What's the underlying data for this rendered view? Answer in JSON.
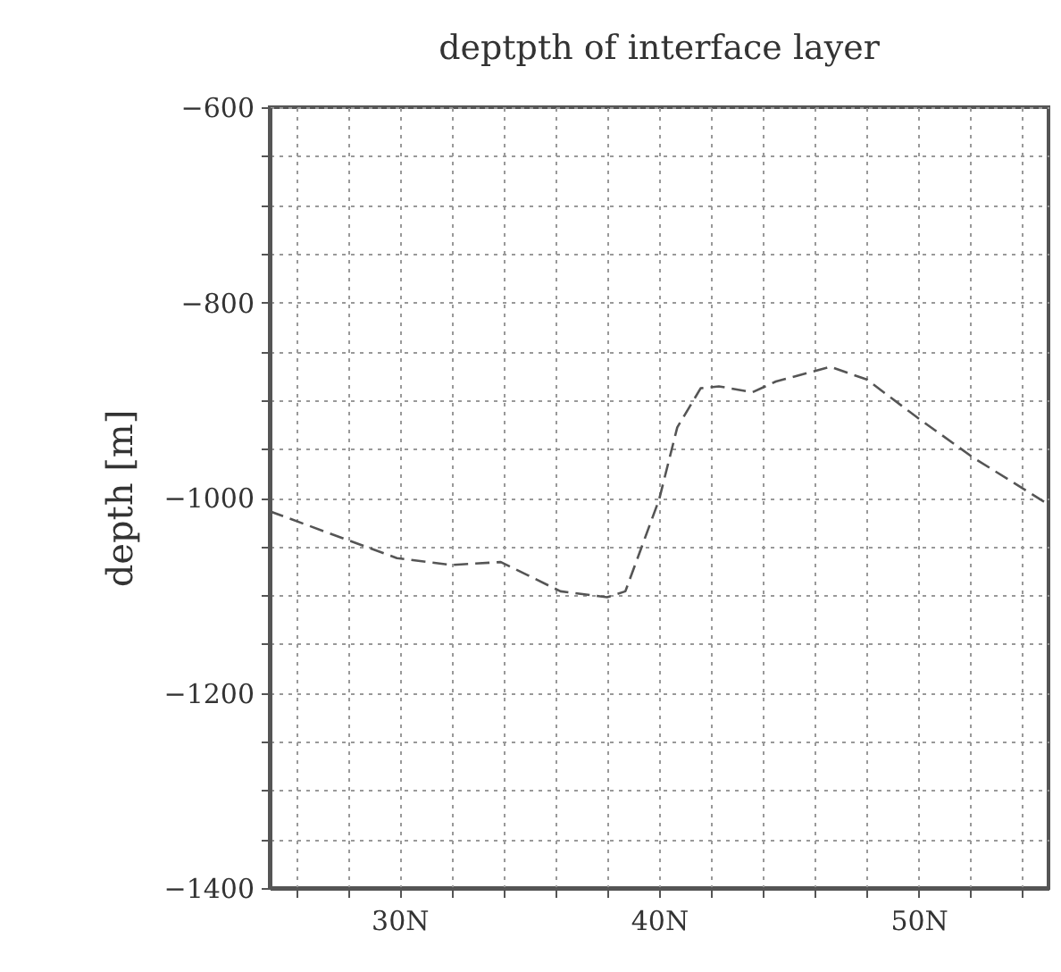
{
  "chart_data": {
    "type": "line",
    "title": "deptpth of interface layer",
    "ylabel": "depth [m]",
    "x": [
      25,
      29.9,
      32,
      33.9,
      36.2,
      38,
      38.7,
      40,
      40.7,
      41.6,
      42.3,
      43.6,
      44.5,
      46.6,
      48,
      50,
      52.1,
      55
    ],
    "series": [
      {
        "color": "#555555",
        "values": [
          -1014,
          -1062,
          -1069,
          -1066,
          -1096,
          -1102,
          -1096,
          -1002,
          -928,
          -888,
          -886,
          -892,
          -881,
          -866,
          -879,
          -919,
          -959,
          -1007
        ]
      }
    ],
    "xlim": [
      25,
      55
    ],
    "xticks": [
      {
        "value": 26,
        "label": null
      },
      {
        "value": 28,
        "label": null
      },
      {
        "value": 30,
        "label": "30N"
      },
      {
        "value": 32,
        "label": null
      },
      {
        "value": 34,
        "label": null
      },
      {
        "value": 36,
        "label": null
      },
      {
        "value": 38,
        "label": null
      },
      {
        "value": 40,
        "label": "40N"
      },
      {
        "value": 42,
        "label": null
      },
      {
        "value": 44,
        "label": null
      },
      {
        "value": 46,
        "label": null
      },
      {
        "value": 48,
        "label": null
      },
      {
        "value": 50,
        "label": "50N"
      },
      {
        "value": 52,
        "label": null
      },
      {
        "value": 54,
        "label": null
      }
    ],
    "ylim": [
      -1400,
      -600
    ],
    "yticks": [
      -1400,
      {
        "value": -1350,
        "label": null
      },
      {
        "value": -1300,
        "label": null
      },
      {
        "value": -1250,
        "label": null
      },
      -1200,
      {
        "value": -1150,
        "label": null
      },
      {
        "value": -1100,
        "label": null
      },
      {
        "value": -1050,
        "label": null
      },
      -1000,
      {
        "value": -950,
        "label": null
      },
      {
        "value": -900,
        "label": null
      },
      {
        "value": -850,
        "label": null
      },
      -800,
      {
        "value": -750,
        "label": null
      },
      {
        "value": -700,
        "label": null
      },
      {
        "value": -650,
        "label": null
      },
      -600
    ],
    "grid": true,
    "line_style": "dashed",
    "marker": "none"
  }
}
